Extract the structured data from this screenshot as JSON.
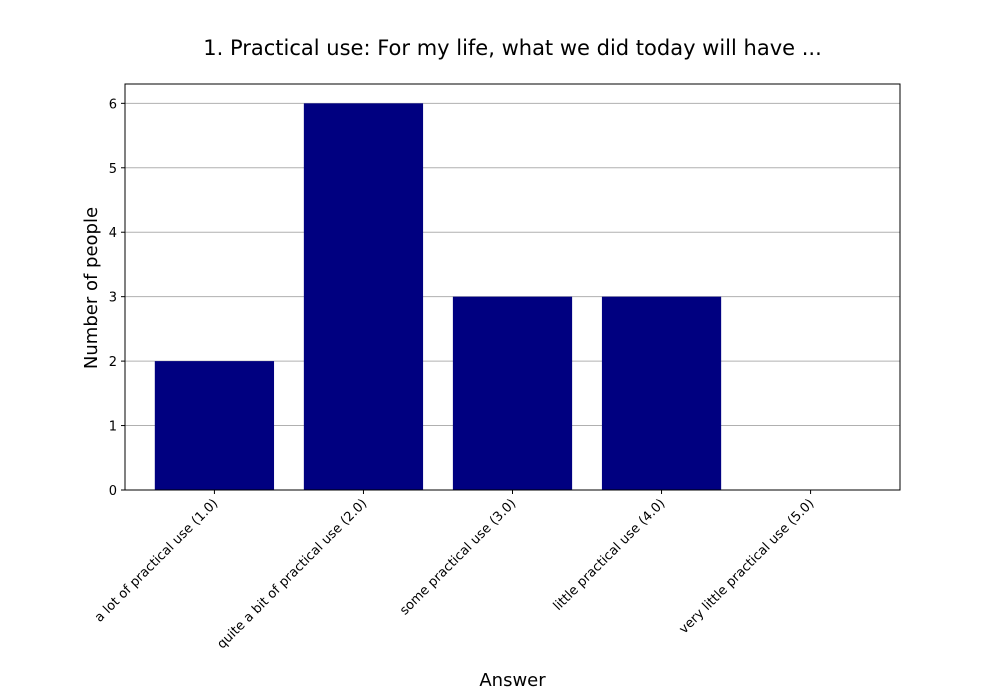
{
  "chart_data": {
    "type": "bar",
    "title": "1. Practical use: For my life, what we did today will have ...",
    "xlabel": "Answer",
    "ylabel": "Number of people",
    "categories": [
      "a lot of practical use (1.0)",
      "quite a bit of practical use (2.0)",
      "some practical use (3.0)",
      "little practical use (4.0)",
      "very little practical use (5.0)"
    ],
    "values": [
      2,
      6,
      3,
      3,
      0
    ],
    "ylim": [
      0,
      6.3
    ],
    "yticks": [
      0,
      1,
      2,
      3,
      4,
      5,
      6
    ],
    "grid": "horizontal",
    "bar_color": "#000080",
    "grid_color": "#b0b0b0"
  }
}
